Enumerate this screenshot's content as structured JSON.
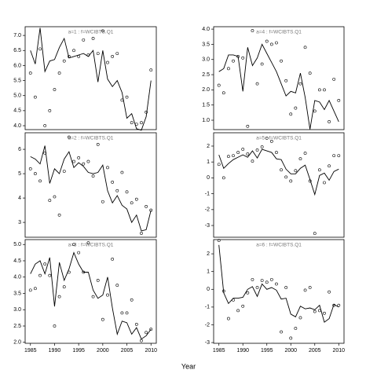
{
  "xlabel": "Year",
  "chart_data": [
    {
      "type": "line",
      "title": "a=1 : f=WCIBTS.Q1",
      "x": [
        1985,
        1986,
        1987,
        1988,
        1989,
        1990,
        1991,
        1992,
        1993,
        1994,
        1995,
        1996,
        1997,
        1998,
        1999,
        2000,
        2001,
        2002,
        2003,
        2004,
        2005,
        2006,
        2007,
        2008,
        2009,
        2010
      ],
      "series": [
        {
          "mark": "line",
          "color": "#000000",
          "values": [
            6.5,
            6.05,
            7.25,
            5.8,
            6.15,
            6.2,
            6.6,
            6.9,
            6.25,
            6.3,
            6.35,
            6.4,
            6.3,
            6.5,
            5.45,
            6.5,
            5.55,
            5.3,
            5.5,
            5.1,
            4.25,
            4.4,
            3.9,
            3.85,
            4.3,
            5.5
          ]
        },
        {
          "mark": "point",
          "color": "#000000",
          "values": [
            5.75,
            4.95,
            6.55,
            4.0,
            4.5,
            5.2,
            5.75,
            6.15,
            6.3,
            6.5,
            6.3,
            6.85,
            6.35,
            6.9,
            6.4,
            7.15,
            6.1,
            6.3,
            6.4,
            4.85,
            4.95,
            4.1,
            4.05,
            4.1,
            4.45,
            5.85
          ]
        }
      ],
      "xlim": [
        1983.9,
        2011.1
      ],
      "xticks": [
        1985,
        1990,
        1995,
        2000,
        2005,
        2010
      ],
      "ylim": [
        3.87,
        7.29
      ],
      "yticks": [
        {
          "value": 4,
          "label": "4.0"
        },
        {
          "value": 4.5,
          "label": "4.5"
        },
        {
          "value": 5,
          "label": "5.0"
        },
        {
          "value": 5.5,
          "label": "5.5"
        },
        {
          "value": 6,
          "label": "6.0"
        },
        {
          "value": 6.5,
          "label": "6.5"
        },
        {
          "value": 7,
          "label": "7.0"
        }
      ]
    },
    {
      "type": "line",
      "title": "a=2 : f=WCIBTS.Q1",
      "x": [
        1985,
        1986,
        1987,
        1988,
        1989,
        1990,
        1991,
        1992,
        1993,
        1994,
        1995,
        1996,
        1997,
        1998,
        1999,
        2000,
        2001,
        2002,
        2003,
        2004,
        2005,
        2006,
        2007,
        2008,
        2009,
        2010
      ],
      "series": [
        {
          "mark": "line",
          "color": "#000000",
          "values": [
            5.7,
            5.6,
            5.4,
            6.15,
            4.6,
            5.2,
            5.0,
            5.6,
            5.9,
            5.25,
            5.45,
            5.3,
            5.05,
            5.0,
            5.05,
            5.35,
            4.3,
            3.8,
            4.1,
            3.7,
            3.55,
            3.0,
            3.3,
            2.65,
            2.7,
            3.5
          ]
        },
        {
          "mark": "point",
          "color": "#000000",
          "values": [
            5.2,
            5.0,
            4.7,
            5.85,
            3.9,
            4.05,
            3.3,
            5.1,
            6.5,
            5.5,
            5.65,
            5.4,
            5.5,
            4.9,
            6.2,
            3.85,
            5.25,
            4.65,
            4.3,
            5.05,
            4.25,
            3.8,
            3.95,
            2.55,
            3.65,
            3.5
          ]
        }
      ],
      "xlim": [
        1983.9,
        2011.1
      ],
      "xticks": [
        1985,
        1990,
        1995,
        2000,
        2005,
        2010
      ],
      "ylim": [
        2.39,
        6.68
      ],
      "yticks": [
        3,
        4,
        5,
        6
      ]
    },
    {
      "type": "line",
      "title": "a=3 : f=WCIBTS.Q1",
      "x": [
        1985,
        1986,
        1987,
        1988,
        1989,
        1990,
        1991,
        1992,
        1993,
        1994,
        1995,
        1996,
        1997,
        1998,
        1999,
        2000,
        2001,
        2002,
        2003,
        2004,
        2005,
        2006,
        2007,
        2008,
        2009,
        2010
      ],
      "series": [
        {
          "mark": "line",
          "color": "#000000",
          "values": [
            4.1,
            4.4,
            4.5,
            4.1,
            4.6,
            3.1,
            4.45,
            3.9,
            4.25,
            4.75,
            4.4,
            4.15,
            4.15,
            3.6,
            3.35,
            3.45,
            4.0,
            3.05,
            2.25,
            2.65,
            2.6,
            2.25,
            2.45,
            2.1,
            2.2,
            2.4
          ]
        },
        {
          "mark": "point",
          "color": "#000000",
          "values": [
            3.6,
            3.65,
            4.05,
            4.4,
            4.05,
            2.5,
            3.4,
            3.7,
            4.15,
            5.0,
            4.75,
            4.15,
            5.05,
            3.4,
            3.9,
            2.7,
            3.45,
            4.55,
            3.75,
            2.9,
            2.9,
            3.3,
            2.55,
            2.05,
            2.3,
            2.4
          ]
        }
      ],
      "xlim": [
        1983.9,
        2011.1
      ],
      "xticks": [
        1985,
        1990,
        1995,
        2000,
        2005,
        2010
      ],
      "ylim": [
        1.97,
        5.15
      ],
      "yticks": [
        {
          "value": 2,
          "label": "2.0"
        },
        {
          "value": 2.5,
          "label": "2.5"
        },
        {
          "value": 3,
          "label": "3.0"
        },
        {
          "value": 3.5,
          "label": "3.5"
        },
        {
          "value": 4,
          "label": "4.0"
        },
        {
          "value": 4.5,
          "label": "4.5"
        },
        {
          "value": 5,
          "label": "5.0"
        }
      ]
    },
    {
      "type": "line",
      "title": "a=4 : f=WCIBTS.Q1",
      "x": [
        1985,
        1986,
        1987,
        1988,
        1989,
        1990,
        1991,
        1992,
        1993,
        1994,
        1995,
        1996,
        1997,
        1998,
        1999,
        2000,
        2001,
        2002,
        2003,
        2004,
        2005,
        2006,
        2007,
        2008,
        2009,
        2010
      ],
      "series": [
        {
          "mark": "line",
          "color": "#000000",
          "values": [
            2.6,
            2.7,
            3.15,
            3.15,
            3.1,
            1.95,
            3.4,
            2.8,
            3.05,
            3.5,
            3.2,
            2.9,
            2.6,
            2.2,
            1.8,
            1.95,
            1.9,
            2.55,
            1.75,
            0.7,
            1.65,
            1.6,
            1.35,
            1.65,
            1.3,
            0.95
          ]
        },
        {
          "mark": "point",
          "color": "#000000",
          "values": [
            2.15,
            1.9,
            2.7,
            2.95,
            3.1,
            3.05,
            0.8,
            3.95,
            2.2,
            2.85,
            3.6,
            3.5,
            3.55,
            2.95,
            2.3,
            1.2,
            1.4,
            2.2,
            3.4,
            2.55,
            1.3,
            2.0,
            2.0,
            0.95,
            2.35,
            1.65
          ]
        }
      ],
      "xlim": [
        1983.9,
        2011.1
      ],
      "xticks": [
        1985,
        1990,
        1995,
        2000,
        2005,
        2010
      ],
      "ylim": [
        0.69,
        4.08
      ],
      "yticks": [
        {
          "value": 1,
          "label": "1.0"
        },
        {
          "value": 1.5,
          "label": "1.5"
        },
        {
          "value": 2,
          "label": "2.0"
        },
        {
          "value": 2.5,
          "label": "2.5"
        },
        {
          "value": 3,
          "label": "3.0"
        },
        {
          "value": 3.5,
          "label": "3.5"
        },
        {
          "value": 4,
          "label": "4.0"
        }
      ]
    },
    {
      "type": "line",
      "title": "a=5 : f=WCIBTS.Q1",
      "x": [
        1985,
        1986,
        1987,
        1988,
        1989,
        1990,
        1991,
        1992,
        1993,
        1994,
        1995,
        1996,
        1997,
        1998,
        1999,
        2000,
        2001,
        2002,
        2003,
        2004,
        2005,
        2006,
        2007,
        2008,
        2009,
        2010
      ],
      "series": [
        {
          "mark": "line",
          "color": "#000000",
          "values": [
            1.45,
            0.6,
            0.9,
            1.15,
            1.3,
            1.45,
            1.3,
            1.7,
            1.25,
            1.8,
            1.7,
            1.6,
            1.2,
            1.15,
            0.55,
            0.25,
            0.25,
            0.6,
            0.8,
            -0.1,
            -1.05,
            0.15,
            0.3,
            -0.15,
            0.4,
            0.55
          ]
        },
        {
          "mark": "point",
          "color": "#000000",
          "values": [
            0.85,
            0.0,
            1.35,
            1.4,
            1.6,
            1.8,
            1.5,
            1.05,
            1.75,
            1.95,
            2.5,
            2.3,
            1.6,
            0.5,
            0.05,
            -0.2,
            0.45,
            1.2,
            1.55,
            -0.2,
            -3.5,
            0.5,
            -0.3,
            0.75,
            1.4,
            1.4
          ]
        }
      ],
      "xlim": [
        1983.9,
        2011.1
      ],
      "xticks": [
        1985,
        1990,
        1995,
        2000,
        2005,
        2010
      ],
      "ylim": [
        -3.74,
        2.84
      ],
      "yticks": [
        -3,
        -2,
        -1,
        0,
        1,
        2
      ]
    },
    {
      "type": "line",
      "title": "a=6 : f=WCIBTS.Q1",
      "x": [
        1985,
        1986,
        1987,
        1988,
        1989,
        1990,
        1991,
        1992,
        1993,
        1994,
        1995,
        1996,
        1997,
        1998,
        1999,
        2000,
        2001,
        2002,
        2003,
        2004,
        2005,
        2006,
        2007,
        2008,
        2009,
        2010
      ],
      "series": [
        {
          "mark": "line",
          "color": "#000000",
          "values": [
            2.5,
            -0.2,
            -0.8,
            -0.5,
            -0.5,
            -0.45,
            0.0,
            0.15,
            -0.4,
            0.3,
            0.0,
            0.1,
            -0.05,
            -0.55,
            -0.5,
            -1.4,
            -1.55,
            -0.95,
            -1.1,
            -1.05,
            -1.15,
            -0.9,
            -1.85,
            -1.65,
            -0.85,
            -1.0
          ]
        },
        {
          "mark": "point",
          "color": "#000000",
          "values": [
            2.75,
            -0.1,
            -1.65,
            -0.6,
            -1.2,
            -0.95,
            -0.2,
            0.55,
            0.1,
            0.5,
            0.4,
            0.55,
            0.3,
            -2.4,
            0.1,
            -2.75,
            -2.2,
            -1.6,
            -0.05,
            0.1,
            -1.25,
            -1.2,
            -1.35,
            -0.15,
            -0.9,
            -0.9
          ]
        }
      ],
      "xlim": [
        1983.9,
        2011.1
      ],
      "xticks": [
        1985,
        1990,
        1995,
        2000,
        2005,
        2010
      ],
      "ylim": [
        -3.04,
        2.8
      ],
      "yticks": [
        -3,
        -2,
        -1,
        0,
        1,
        2
      ]
    }
  ]
}
